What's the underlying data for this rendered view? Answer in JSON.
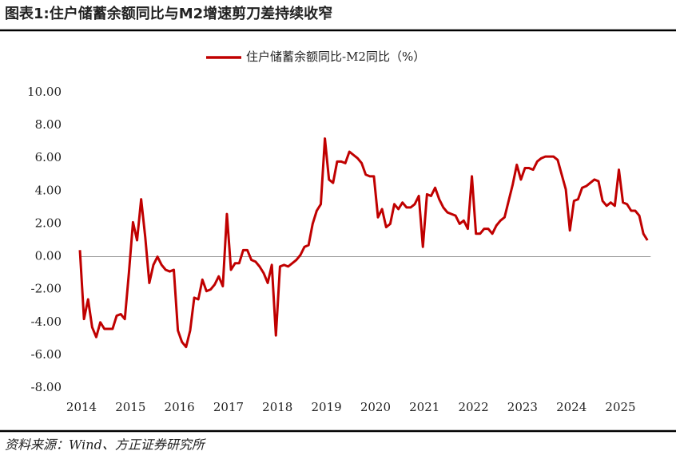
{
  "chart_data": {
    "type": "line",
    "title": "图表1:住户储蓄余额同比与M2增速剪刀差持续收窄",
    "source": "资料来源：Wind、方正证券研究所",
    "categories": [
      "2014",
      null,
      null,
      null,
      null,
      null,
      null,
      null,
      null,
      null,
      null,
      null,
      "2015",
      null,
      null,
      null,
      null,
      null,
      null,
      null,
      null,
      null,
      null,
      null,
      "2016",
      null,
      null,
      null,
      null,
      null,
      null,
      null,
      null,
      null,
      null,
      null,
      "2017",
      null,
      null,
      null,
      null,
      null,
      null,
      null,
      null,
      null,
      null,
      null,
      "2018",
      null,
      null,
      null,
      null,
      null,
      null,
      null,
      null,
      null,
      null,
      null,
      "2019",
      null,
      null,
      null,
      null,
      null,
      null,
      null,
      null,
      null,
      null,
      null,
      "2020",
      null,
      null,
      null,
      null,
      null,
      null,
      null,
      null,
      null,
      null,
      null,
      "2021",
      null,
      null,
      null,
      null,
      null,
      null,
      null,
      null,
      null,
      null,
      null,
      "2022",
      null,
      null,
      null,
      null,
      null,
      null,
      null,
      null,
      null,
      null,
      null,
      "2023",
      null,
      null,
      null,
      null,
      null,
      null,
      null,
      null,
      null,
      null,
      null,
      "2024",
      null,
      null,
      null,
      null,
      null,
      null,
      null,
      null,
      null,
      null,
      null,
      "2025",
      null,
      null,
      null,
      null,
      null,
      null,
      null
    ],
    "series": [
      {
        "name": "住户储蓄余额同比-M2同比（%）",
        "color": "#c00000",
        "values": [
          0.4,
          -3.8,
          -2.6,
          -4.3,
          -4.9,
          -4.0,
          -4.4,
          -4.4,
          -4.4,
          -3.6,
          -3.5,
          -3.8,
          -1.0,
          2.1,
          1.0,
          3.5,
          1.2,
          -1.6,
          -0.5,
          0.0,
          -0.5,
          -0.8,
          -0.9,
          -0.8,
          -4.5,
          -5.2,
          -5.5,
          -4.5,
          -2.5,
          -2.6,
          -1.4,
          -2.1,
          -2.0,
          -1.7,
          -1.2,
          -1.8,
          2.6,
          -0.8,
          -0.4,
          -0.4,
          0.4,
          0.4,
          -0.2,
          -0.3,
          -0.6,
          -1.0,
          -1.6,
          -0.5,
          -4.8,
          -0.6,
          -0.5,
          -0.6,
          -0.4,
          -0.2,
          0.1,
          0.6,
          0.7,
          2.0,
          2.8,
          3.2,
          7.2,
          4.7,
          4.5,
          5.8,
          5.8,
          5.7,
          6.4,
          6.2,
          6.0,
          5.7,
          5.0,
          4.9,
          4.9,
          2.4,
          2.9,
          1.8,
          2.0,
          3.2,
          2.9,
          3.3,
          3.0,
          3.0,
          3.2,
          3.7,
          0.6,
          3.8,
          3.7,
          4.2,
          3.5,
          3.0,
          2.7,
          2.6,
          2.5,
          2.0,
          2.2,
          1.7,
          4.9,
          1.4,
          1.4,
          1.7,
          1.7,
          1.4,
          1.9,
          2.2,
          2.4,
          3.4,
          4.4,
          5.6,
          4.7,
          5.4,
          5.4,
          5.3,
          5.8,
          6.0,
          6.1,
          6.1,
          6.1,
          5.9,
          5.0,
          4.1,
          1.6,
          3.4,
          3.5,
          4.2,
          4.3,
          4.5,
          4.7,
          4.6,
          3.4,
          3.1,
          3.3,
          3.1,
          5.3,
          3.3,
          3.2,
          2.8,
          2.8,
          2.5,
          1.4,
          1.0
        ]
      }
    ],
    "ylim": [
      -8,
      10
    ],
    "yticks": [
      {
        "value": 10,
        "label": "10.00"
      },
      {
        "value": 8,
        "label": "8.00"
      },
      {
        "value": 6,
        "label": "6.00"
      },
      {
        "value": 4,
        "label": "4.00"
      },
      {
        "value": 2,
        "label": "2.00"
      },
      {
        "value": 0,
        "label": "0.00"
      },
      {
        "value": -2,
        "label": "-2.00"
      },
      {
        "value": -4,
        "label": "-4.00"
      },
      {
        "value": -6,
        "label": "-6.00"
      },
      {
        "value": -8,
        "label": "-8.00"
      }
    ],
    "grid": false,
    "legend": "top"
  }
}
